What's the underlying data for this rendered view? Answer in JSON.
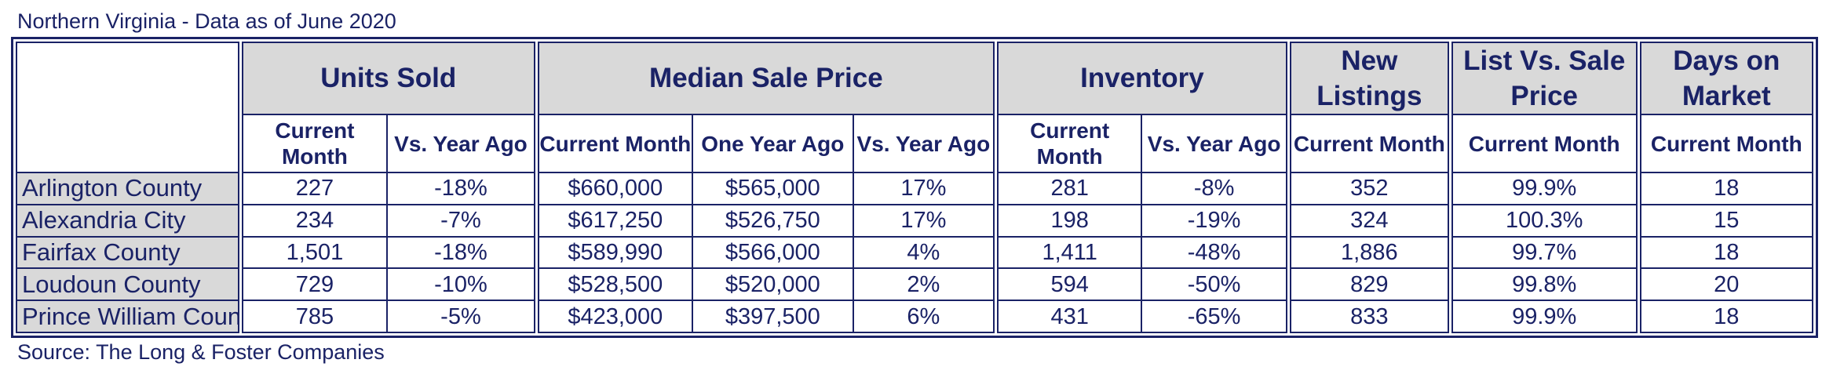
{
  "chart_data": {
    "type": "table",
    "title": "Northern Virginia - Data as of June 2020",
    "source": "Source: The Long & Foster Companies",
    "groups": [
      {
        "label": "Units Sold",
        "subs": [
          "Current Month",
          "Vs. Year Ago"
        ]
      },
      {
        "label": "Median Sale Price",
        "subs": [
          "Current Month",
          "One Year Ago",
          "Vs. Year Ago"
        ]
      },
      {
        "label": "Inventory",
        "subs": [
          "Current Month",
          "Vs. Year Ago"
        ]
      },
      {
        "label": "New Listings",
        "subs": [
          "Current Month"
        ]
      },
      {
        "label": "List Vs. Sale Price",
        "subs": [
          "Current Month"
        ]
      },
      {
        "label": "Days on Market",
        "subs": [
          "Current Month"
        ]
      }
    ],
    "rows": [
      {
        "region": "Arlington County",
        "values": [
          "227",
          "-18%",
          "$660,000",
          "$565,000",
          "17%",
          "281",
          "-8%",
          "352",
          "99.9%",
          "18"
        ]
      },
      {
        "region": "Alexandria City",
        "values": [
          "234",
          "-7%",
          "$617,250",
          "$526,750",
          "17%",
          "198",
          "-19%",
          "324",
          "100.3%",
          "15"
        ]
      },
      {
        "region": "Fairfax County",
        "values": [
          "1,501",
          "-18%",
          "$589,990",
          "$566,000",
          "4%",
          "1,411",
          "-48%",
          "1,886",
          "99.7%",
          "18"
        ]
      },
      {
        "region": "Loudoun County",
        "values": [
          "729",
          "-10%",
          "$528,500",
          "$520,000",
          "2%",
          "594",
          "-50%",
          "829",
          "99.8%",
          "20"
        ]
      },
      {
        "region": "Prince William County",
        "values": [
          "785",
          "-5%",
          "$423,000",
          "$397,500",
          "6%",
          "431",
          "-65%",
          "833",
          "99.9%",
          "18"
        ]
      }
    ]
  },
  "colors": {
    "text": "#1a2266",
    "header_fill": "#d9d9d9",
    "border": "#1a2266"
  }
}
